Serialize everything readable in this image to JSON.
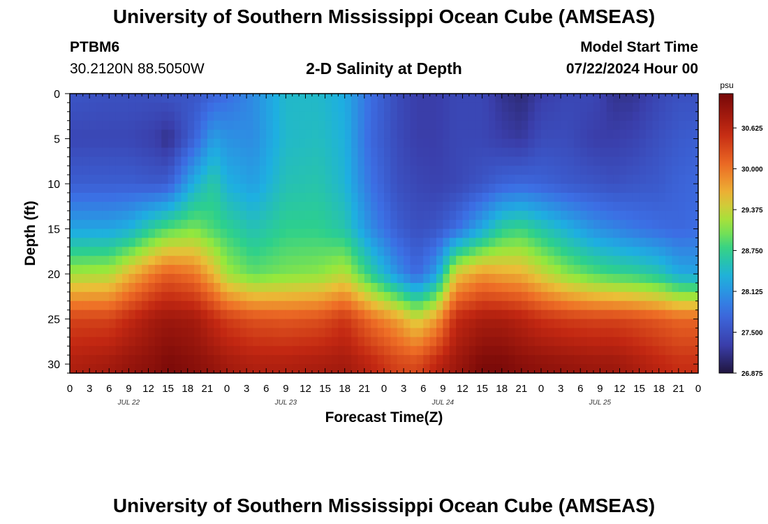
{
  "header": {
    "title": "University of Southern Mississippi Ocean Cube (AMSEAS)",
    "station_id": "PTBM6",
    "station_coords": "30.2120N  88.5050W",
    "model_label": "Model Start Time",
    "model_start": "07/22/2024 Hour 00"
  },
  "footer": {
    "title": "University of Southern Mississippi Ocean Cube (AMSEAS)"
  },
  "chart_data": {
    "type": "heatmap",
    "title": "2-D Salinity at Depth",
    "xlabel": "Forecast Time(Z)",
    "ylabel": "Depth (ft)",
    "x_ticks": [
      "0",
      "3",
      "6",
      "9",
      "12",
      "15",
      "18",
      "21",
      "0",
      "3",
      "6",
      "9",
      "12",
      "15",
      "18",
      "21",
      "0",
      "3",
      "6",
      "9",
      "12",
      "15",
      "18",
      "21",
      "0",
      "3",
      "6",
      "9",
      "12",
      "15",
      "18",
      "21",
      "0"
    ],
    "x_range_hours": [
      0,
      96
    ],
    "day_labels": [
      {
        "label": "JUL 22",
        "hour": 9
      },
      {
        "label": "JUL 23",
        "hour": 33
      },
      {
        "label": "JUL 24",
        "hour": 57
      },
      {
        "label": "JUL 25",
        "hour": 81
      }
    ],
    "y_ticks": [
      0,
      5,
      10,
      15,
      20,
      25,
      30
    ],
    "y_range_ft": [
      0,
      31
    ],
    "y_inverted": true,
    "colorbar": {
      "unit": "psu",
      "min": 26.875,
      "max": 31.15,
      "tick_labels": [
        "30.625",
        "30.000",
        "29.375",
        "28.750",
        "28.125",
        "27.500",
        "26.875"
      ],
      "tick_values": [
        30.625,
        30.0,
        29.375,
        28.75,
        28.125,
        27.5,
        26.875
      ]
    },
    "salinity_psu": {
      "hours": [
        0,
        6,
        9,
        13,
        15,
        19,
        22,
        24,
        28,
        33,
        38,
        42,
        46,
        50,
        53,
        56,
        59,
        63,
        66,
        69,
        72,
        76,
        80,
        83,
        86,
        90,
        93,
        96
      ],
      "depths": [
        0,
        5,
        10,
        15,
        20,
        25,
        30
      ],
      "values": [
        [
          27.55,
          27.5,
          27.5,
          27.5,
          27.55,
          27.55,
          27.7,
          27.8,
          28.05,
          28.45,
          28.45,
          28.3,
          27.8,
          27.45,
          27.3,
          27.3,
          27.4,
          27.4,
          27.2,
          27.1,
          27.3,
          27.4,
          27.4,
          27.2,
          27.2,
          27.4,
          27.5,
          27.5
        ],
        [
          27.4,
          27.4,
          27.4,
          27.3,
          27.15,
          27.7,
          28.2,
          28.1,
          28.05,
          28.45,
          28.5,
          28.35,
          27.75,
          27.45,
          27.3,
          27.3,
          27.4,
          27.4,
          27.3,
          27.25,
          27.45,
          27.45,
          27.3,
          27.3,
          27.35,
          27.5,
          27.6,
          27.65
        ],
        [
          27.65,
          27.65,
          27.65,
          27.6,
          27.65,
          28.35,
          28.65,
          28.35,
          28.2,
          28.55,
          28.6,
          28.4,
          27.85,
          27.5,
          27.4,
          27.35,
          27.4,
          27.55,
          27.7,
          27.75,
          27.7,
          27.6,
          27.55,
          27.5,
          27.55,
          27.6,
          27.7,
          27.75
        ],
        [
          28.25,
          28.25,
          28.35,
          28.75,
          28.9,
          29.05,
          28.85,
          28.75,
          28.55,
          28.75,
          28.75,
          28.6,
          28.05,
          27.65,
          27.5,
          27.55,
          27.8,
          28.3,
          28.7,
          28.8,
          28.6,
          28.35,
          28.1,
          28.0,
          27.9,
          27.8,
          27.75,
          27.8
        ],
        [
          29.2,
          29.25,
          29.6,
          30.0,
          30.15,
          30.0,
          29.6,
          29.2,
          28.95,
          29.05,
          29.1,
          29.3,
          28.7,
          28.1,
          27.75,
          28.2,
          29.5,
          29.8,
          29.7,
          29.65,
          29.4,
          29.1,
          28.9,
          28.8,
          28.75,
          28.6,
          28.3,
          28.25
        ],
        [
          30.35,
          30.35,
          30.55,
          30.8,
          30.85,
          30.8,
          30.55,
          30.4,
          30.25,
          30.2,
          30.25,
          30.45,
          30.05,
          29.75,
          29.4,
          29.75,
          30.55,
          30.75,
          30.75,
          30.65,
          30.5,
          30.4,
          30.35,
          30.35,
          30.3,
          30.2,
          30.1,
          30.1
        ],
        [
          30.7,
          30.8,
          30.9,
          31.0,
          31.1,
          31.0,
          30.9,
          30.8,
          30.7,
          30.7,
          30.75,
          30.8,
          30.6,
          30.35,
          30.3,
          30.6,
          30.85,
          31.1,
          31.1,
          31.0,
          30.95,
          30.9,
          30.85,
          30.85,
          30.75,
          30.6,
          30.5,
          30.5
        ]
      ]
    }
  }
}
